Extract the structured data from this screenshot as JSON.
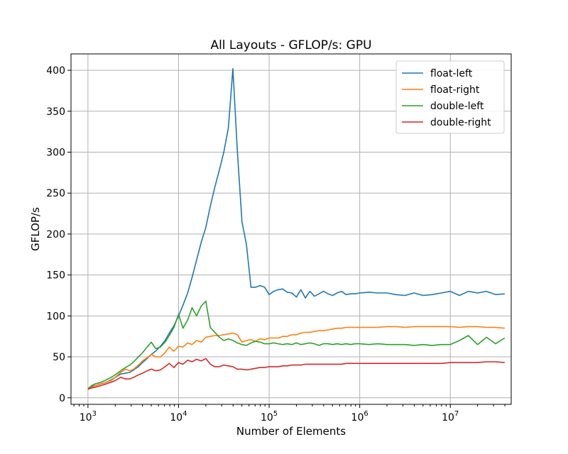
{
  "chart_data": {
    "type": "line",
    "title": "All Layouts - GFLOP/s: GPU",
    "xlabel": "Number of Elements",
    "ylabel": "GFLOP/s",
    "xscale": "log",
    "xlim": [
      650,
      47000000
    ],
    "ylim": [
      -8,
      420
    ],
    "xticks": [
      {
        "value": 1000,
        "base": "10",
        "exp": "3"
      },
      {
        "value": 10000,
        "base": "10",
        "exp": "4"
      },
      {
        "value": 100000,
        "base": "10",
        "exp": "5"
      },
      {
        "value": 1000000,
        "base": "10",
        "exp": "6"
      },
      {
        "value": 10000000,
        "base": "10",
        "exp": "7"
      }
    ],
    "yticks": [
      0,
      50,
      100,
      150,
      200,
      250,
      300,
      350,
      400
    ],
    "grid": true,
    "legend_position": "top-right",
    "series": [
      {
        "name": "float-left",
        "color": "#1f77b4",
        "points": [
          [
            1000,
            11
          ],
          [
            1100,
            14
          ],
          [
            1200,
            15
          ],
          [
            1400,
            17
          ],
          [
            1600,
            19
          ],
          [
            1800,
            22
          ],
          [
            2000,
            25
          ],
          [
            2300,
            29
          ],
          [
            2600,
            30
          ],
          [
            2900,
            31
          ],
          [
            3200,
            34
          ],
          [
            3600,
            38
          ],
          [
            4000,
            43
          ],
          [
            4500,
            48
          ],
          [
            5000,
            53
          ],
          [
            5600,
            57
          ],
          [
            6300,
            63
          ],
          [
            7100,
            70
          ],
          [
            7900,
            79
          ],
          [
            8900,
            88
          ],
          [
            10000,
            100
          ],
          [
            11200,
            113
          ],
          [
            12600,
            128
          ],
          [
            14100,
            147
          ],
          [
            15800,
            168
          ],
          [
            17800,
            190
          ],
          [
            20000,
            208
          ],
          [
            22400,
            234
          ],
          [
            25100,
            257
          ],
          [
            28200,
            278
          ],
          [
            31600,
            300
          ],
          [
            35500,
            330
          ],
          [
            39800,
            402
          ],
          [
            44700,
            300
          ],
          [
            50100,
            215
          ],
          [
            56200,
            187
          ],
          [
            63100,
            135
          ],
          [
            70800,
            135
          ],
          [
            79400,
            137
          ],
          [
            89100,
            135
          ],
          [
            100000,
            126
          ],
          [
            112000,
            130
          ],
          [
            126000,
            132
          ],
          [
            141000,
            133
          ],
          [
            158000,
            129
          ],
          [
            178000,
            128
          ],
          [
            200000,
            123
          ],
          [
            224000,
            132
          ],
          [
            251000,
            122
          ],
          [
            282000,
            130
          ],
          [
            316000,
            124
          ],
          [
            355000,
            127
          ],
          [
            398000,
            130
          ],
          [
            447000,
            127
          ],
          [
            501000,
            125
          ],
          [
            562000,
            128
          ],
          [
            631000,
            130
          ],
          [
            708000,
            126
          ],
          [
            794000,
            127
          ],
          [
            891000,
            127
          ],
          [
            1000000,
            128
          ],
          [
            1260000,
            129
          ],
          [
            1580000,
            128
          ],
          [
            2000000,
            128
          ],
          [
            2510000,
            126
          ],
          [
            3160000,
            125
          ],
          [
            3980000,
            128
          ],
          [
            5010000,
            125
          ],
          [
            6310000,
            126
          ],
          [
            7940000,
            128
          ],
          [
            10000000,
            130
          ],
          [
            12600000,
            125
          ],
          [
            15800000,
            130
          ],
          [
            20000000,
            128
          ],
          [
            25100000,
            130
          ],
          [
            31600000,
            126
          ],
          [
            39800000,
            127
          ]
        ]
      },
      {
        "name": "float-right",
        "color": "#ff7f0e",
        "points": [
          [
            1000,
            10
          ],
          [
            1100,
            13
          ],
          [
            1200,
            15
          ],
          [
            1400,
            17
          ],
          [
            1600,
            19
          ],
          [
            1800,
            21
          ],
          [
            2000,
            25
          ],
          [
            2300,
            31
          ],
          [
            2600,
            35
          ],
          [
            2900,
            33
          ],
          [
            3200,
            35
          ],
          [
            3600,
            40
          ],
          [
            4000,
            45
          ],
          [
            4500,
            49
          ],
          [
            5000,
            53
          ],
          [
            5600,
            50
          ],
          [
            6300,
            50
          ],
          [
            7100,
            55
          ],
          [
            7900,
            62
          ],
          [
            8900,
            57
          ],
          [
            10000,
            63
          ],
          [
            11200,
            62
          ],
          [
            12600,
            67
          ],
          [
            14100,
            65
          ],
          [
            15800,
            70
          ],
          [
            17800,
            68
          ],
          [
            20000,
            74
          ],
          [
            22400,
            75
          ],
          [
            25100,
            76
          ],
          [
            28200,
            76
          ],
          [
            31600,
            77
          ],
          [
            35500,
            78
          ],
          [
            39800,
            79
          ],
          [
            44700,
            77
          ],
          [
            50100,
            68
          ],
          [
            56200,
            70
          ],
          [
            63100,
            71
          ],
          [
            70800,
            69
          ],
          [
            79400,
            72
          ],
          [
            89100,
            71
          ],
          [
            100000,
            73
          ],
          [
            112000,
            73
          ],
          [
            126000,
            73
          ],
          [
            141000,
            75
          ],
          [
            158000,
            75
          ],
          [
            178000,
            77
          ],
          [
            200000,
            77
          ],
          [
            224000,
            79
          ],
          [
            251000,
            80
          ],
          [
            282000,
            80
          ],
          [
            316000,
            81
          ],
          [
            355000,
            82
          ],
          [
            398000,
            82
          ],
          [
            447000,
            83
          ],
          [
            501000,
            84
          ],
          [
            562000,
            85
          ],
          [
            631000,
            85
          ],
          [
            708000,
            86
          ],
          [
            794000,
            86
          ],
          [
            891000,
            86
          ],
          [
            1000000,
            86
          ],
          [
            1260000,
            86
          ],
          [
            1580000,
            86
          ],
          [
            2000000,
            87
          ],
          [
            2510000,
            87
          ],
          [
            3160000,
            86
          ],
          [
            3980000,
            87
          ],
          [
            5010000,
            87
          ],
          [
            6310000,
            87
          ],
          [
            7940000,
            87
          ],
          [
            10000000,
            87
          ],
          [
            12600000,
            86
          ],
          [
            15800000,
            87
          ],
          [
            20000000,
            87
          ],
          [
            25100000,
            86
          ],
          [
            31600000,
            86
          ],
          [
            39800000,
            85
          ]
        ]
      },
      {
        "name": "double-left",
        "color": "#2ca02c",
        "points": [
          [
            1000,
            11
          ],
          [
            1100,
            15
          ],
          [
            1200,
            17
          ],
          [
            1400,
            19
          ],
          [
            1600,
            22
          ],
          [
            1800,
            25
          ],
          [
            2000,
            28
          ],
          [
            2300,
            33
          ],
          [
            2600,
            37
          ],
          [
            2900,
            40
          ],
          [
            3200,
            44
          ],
          [
            3600,
            50
          ],
          [
            4000,
            55
          ],
          [
            4500,
            62
          ],
          [
            5000,
            68
          ],
          [
            5600,
            60
          ],
          [
            6300,
            62
          ],
          [
            7100,
            68
          ],
          [
            7900,
            76
          ],
          [
            8900,
            86
          ],
          [
            10000,
            102
          ],
          [
            11200,
            85
          ],
          [
            12600,
            95
          ],
          [
            14100,
            110
          ],
          [
            15800,
            100
          ],
          [
            17800,
            112
          ],
          [
            20000,
            118
          ],
          [
            22400,
            86
          ],
          [
            25100,
            80
          ],
          [
            28200,
            74
          ],
          [
            31600,
            70
          ],
          [
            35500,
            72
          ],
          [
            39800,
            70
          ],
          [
            44700,
            67
          ],
          [
            50100,
            65
          ],
          [
            56200,
            64
          ],
          [
            63100,
            67
          ],
          [
            70800,
            69
          ],
          [
            79400,
            68
          ],
          [
            89100,
            66
          ],
          [
            100000,
            66
          ],
          [
            112000,
            67
          ],
          [
            126000,
            66
          ],
          [
            141000,
            65
          ],
          [
            158000,
            66
          ],
          [
            178000,
            65
          ],
          [
            200000,
            67
          ],
          [
            224000,
            65
          ],
          [
            251000,
            66
          ],
          [
            282000,
            67
          ],
          [
            316000,
            66
          ],
          [
            355000,
            64
          ],
          [
            398000,
            66
          ],
          [
            447000,
            66
          ],
          [
            501000,
            65
          ],
          [
            562000,
            66
          ],
          [
            631000,
            65
          ],
          [
            708000,
            66
          ],
          [
            794000,
            65
          ],
          [
            891000,
            66
          ],
          [
            1000000,
            66
          ],
          [
            1260000,
            65
          ],
          [
            1580000,
            66
          ],
          [
            2000000,
            65
          ],
          [
            2510000,
            65
          ],
          [
            3160000,
            65
          ],
          [
            3980000,
            64
          ],
          [
            5010000,
            65
          ],
          [
            6310000,
            64
          ],
          [
            7940000,
            65
          ],
          [
            10000000,
            65
          ],
          [
            12600000,
            70
          ],
          [
            15800000,
            76
          ],
          [
            20000000,
            65
          ],
          [
            25100000,
            74
          ],
          [
            31600000,
            66
          ],
          [
            39800000,
            73
          ]
        ]
      },
      {
        "name": "double-right",
        "color": "#d62728",
        "points": [
          [
            1000,
            11
          ],
          [
            1100,
            12
          ],
          [
            1200,
            13
          ],
          [
            1400,
            15
          ],
          [
            1600,
            17
          ],
          [
            1800,
            19
          ],
          [
            2000,
            21
          ],
          [
            2300,
            25
          ],
          [
            2600,
            23
          ],
          [
            2900,
            23
          ],
          [
            3200,
            25
          ],
          [
            3600,
            28
          ],
          [
            4000,
            30
          ],
          [
            4500,
            33
          ],
          [
            5000,
            35
          ],
          [
            5600,
            33
          ],
          [
            6300,
            34
          ],
          [
            7100,
            38
          ],
          [
            7900,
            42
          ],
          [
            8900,
            37
          ],
          [
            10000,
            43
          ],
          [
            11200,
            41
          ],
          [
            12600,
            46
          ],
          [
            14100,
            44
          ],
          [
            15800,
            47
          ],
          [
            17800,
            45
          ],
          [
            20000,
            48
          ],
          [
            22400,
            41
          ],
          [
            25100,
            38
          ],
          [
            28200,
            38
          ],
          [
            31600,
            40
          ],
          [
            35500,
            39
          ],
          [
            39800,
            38
          ],
          [
            44700,
            35
          ],
          [
            50100,
            35
          ],
          [
            56200,
            34
          ],
          [
            63100,
            35
          ],
          [
            70800,
            36
          ],
          [
            79400,
            37
          ],
          [
            89100,
            37
          ],
          [
            100000,
            38
          ],
          [
            112000,
            38
          ],
          [
            126000,
            38
          ],
          [
            141000,
            39
          ],
          [
            158000,
            39
          ],
          [
            178000,
            40
          ],
          [
            200000,
            40
          ],
          [
            224000,
            40
          ],
          [
            251000,
            41
          ],
          [
            282000,
            41
          ],
          [
            316000,
            41
          ],
          [
            355000,
            41
          ],
          [
            398000,
            41
          ],
          [
            447000,
            41
          ],
          [
            501000,
            41
          ],
          [
            562000,
            41
          ],
          [
            631000,
            41
          ],
          [
            708000,
            42
          ],
          [
            794000,
            42
          ],
          [
            891000,
            42
          ],
          [
            1000000,
            42
          ],
          [
            1260000,
            42
          ],
          [
            1580000,
            42
          ],
          [
            2000000,
            42
          ],
          [
            2510000,
            42
          ],
          [
            3160000,
            42
          ],
          [
            3980000,
            42
          ],
          [
            5010000,
            42
          ],
          [
            6310000,
            42
          ],
          [
            7940000,
            42
          ],
          [
            10000000,
            43
          ],
          [
            12600000,
            43
          ],
          [
            15800000,
            43
          ],
          [
            20000000,
            43
          ],
          [
            25100000,
            44
          ],
          [
            31600000,
            44
          ],
          [
            39800000,
            43
          ]
        ]
      }
    ]
  }
}
